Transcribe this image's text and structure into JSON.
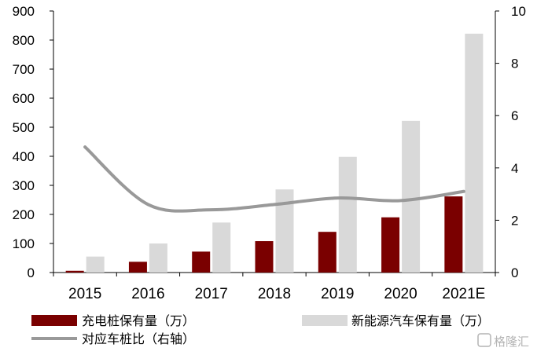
{
  "chart_data": {
    "type": "bar",
    "categories": [
      "2015",
      "2016",
      "2017",
      "2018",
      "2019",
      "2020",
      "2021E"
    ],
    "series": [
      {
        "name": "充电桩保有量（万）",
        "kind": "bar",
        "axis": "left",
        "color": "#7a0000",
        "values": [
          6,
          37,
          72,
          108,
          140,
          190,
          262
        ]
      },
      {
        "name": "新能源汽车保有量（万）",
        "kind": "bar",
        "axis": "left",
        "color": "#d9d9d9",
        "values": [
          55,
          100,
          172,
          286,
          398,
          522,
          822
        ]
      },
      {
        "name": "对应车桩比（右轴）",
        "kind": "line",
        "axis": "right",
        "color": "#999999",
        "values": [
          4.8,
          2.6,
          2.4,
          2.6,
          2.85,
          2.75,
          3.1
        ]
      }
    ],
    "ylim": [
      0,
      900
    ],
    "yticks": [
      "0",
      "100",
      "200",
      "300",
      "400",
      "500",
      "600",
      "700",
      "800",
      "900"
    ],
    "y2lim": [
      0,
      10
    ],
    "y2ticks": [
      "0",
      "2",
      "4",
      "6",
      "8",
      "10"
    ],
    "legend_position": "bottom",
    "grid": false
  },
  "watermark": "格隆汇"
}
